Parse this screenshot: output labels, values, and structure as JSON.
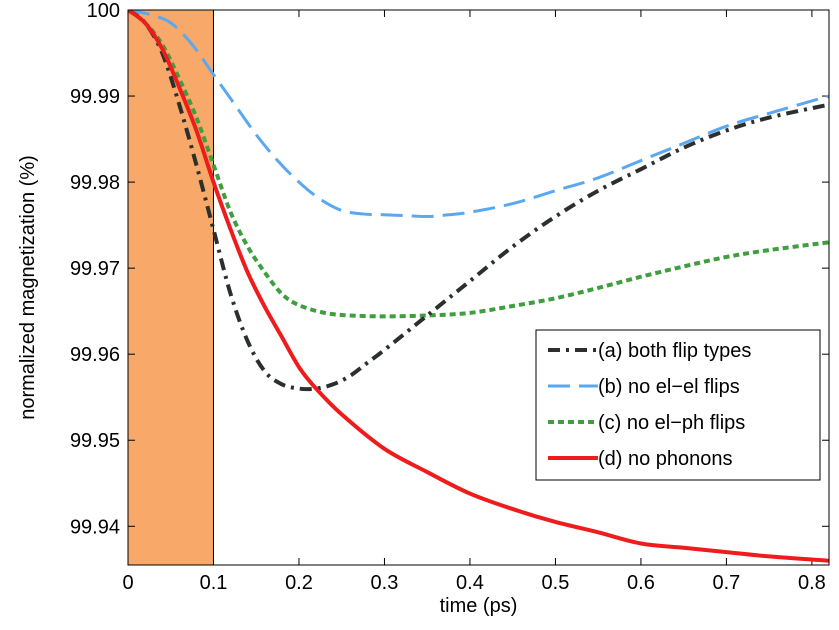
{
  "chart_data": {
    "type": "line",
    "title": "",
    "xlabel": "time (ps)",
    "ylabel": "normalized magnetization (%)",
    "xlim": [
      0,
      0.82
    ],
    "ylim": [
      99.9355,
      100.0
    ],
    "xticks": [
      0,
      0.1,
      0.2,
      0.3,
      0.4,
      0.5,
      0.6,
      0.7,
      0.8
    ],
    "xtick_labels": [
      "0",
      "0.1",
      "0.2",
      "0.3",
      "0.4",
      "0.5",
      "0.6",
      "0.7",
      "0.8"
    ],
    "yticks": [
      99.94,
      99.95,
      99.96,
      99.97,
      99.98,
      99.99,
      100
    ],
    "ytick_labels": [
      "99.94",
      "99.95",
      "99.96",
      "99.97",
      "99.98",
      "99.99",
      "100"
    ],
    "shaded_region": {
      "x": [
        0,
        0.1
      ],
      "color": "#f8a96a"
    },
    "legend_position": "center-right",
    "series": [
      {
        "name": "(a) both flip types",
        "color": "#2b302e",
        "style": "dashdot",
        "x": [
          0,
          0.02,
          0.04,
          0.06,
          0.08,
          0.1,
          0.12,
          0.14,
          0.16,
          0.18,
          0.2,
          0.22,
          0.24,
          0.26,
          0.28,
          0.3,
          0.35,
          0.4,
          0.45,
          0.5,
          0.55,
          0.6,
          0.65,
          0.7,
          0.75,
          0.82
        ],
        "y": [
          100,
          99.9985,
          99.995,
          99.989,
          99.982,
          99.9745,
          99.967,
          99.9615,
          99.958,
          99.9565,
          99.956,
          99.956,
          99.9565,
          99.9575,
          99.959,
          99.9605,
          99.9645,
          99.9685,
          99.9725,
          99.976,
          99.979,
          99.9815,
          99.984,
          99.986,
          99.9875,
          99.989
        ]
      },
      {
        "name": "(b) no el−el flips",
        "color": "#5aa8f0",
        "style": "longdash",
        "x": [
          0,
          0.025,
          0.05,
          0.075,
          0.1,
          0.125,
          0.15,
          0.175,
          0.2,
          0.225,
          0.25,
          0.275,
          0.3,
          0.325,
          0.35,
          0.375,
          0.4,
          0.45,
          0.5,
          0.55,
          0.6,
          0.65,
          0.7,
          0.75,
          0.82
        ],
        "y": [
          100,
          99.9995,
          99.9985,
          99.996,
          99.9925,
          99.989,
          99.9855,
          99.9825,
          99.98,
          99.978,
          99.9767,
          99.9763,
          99.9762,
          99.9761,
          99.976,
          99.9762,
          99.9765,
          99.9775,
          99.979,
          99.9805,
          99.9825,
          99.9845,
          99.9865,
          99.988,
          99.99
        ]
      },
      {
        "name": "(c) no el−ph flips",
        "color": "#3f9e3d",
        "style": "dotted",
        "x": [
          0,
          0.02,
          0.04,
          0.06,
          0.08,
          0.1,
          0.12,
          0.14,
          0.16,
          0.18,
          0.2,
          0.23,
          0.26,
          0.3,
          0.35,
          0.4,
          0.45,
          0.5,
          0.55,
          0.6,
          0.65,
          0.7,
          0.75,
          0.82
        ],
        "y": [
          100,
          99.9985,
          99.996,
          99.992,
          99.9875,
          99.982,
          99.9765,
          99.9725,
          99.9695,
          99.967,
          99.9657,
          99.9648,
          99.9645,
          99.9644,
          99.9645,
          99.9648,
          99.9656,
          99.9665,
          99.9677,
          99.969,
          99.9702,
          99.9713,
          99.9721,
          99.973
        ]
      },
      {
        "name": "(d) no phonons",
        "color": "#ee1c1c",
        "style": "solid",
        "x": [
          0,
          0.02,
          0.04,
          0.06,
          0.08,
          0.1,
          0.12,
          0.14,
          0.16,
          0.18,
          0.2,
          0.22,
          0.25,
          0.3,
          0.35,
          0.4,
          0.45,
          0.5,
          0.55,
          0.6,
          0.65,
          0.7,
          0.75,
          0.82
        ],
        "y": [
          100,
          99.9985,
          99.9955,
          99.991,
          99.986,
          99.98,
          99.9745,
          99.9695,
          99.9655,
          99.962,
          99.9585,
          99.956,
          99.953,
          99.949,
          99.9463,
          99.9438,
          99.942,
          99.9405,
          99.9393,
          99.938,
          99.9375,
          99.937,
          99.9365,
          99.936
        ]
      }
    ]
  }
}
